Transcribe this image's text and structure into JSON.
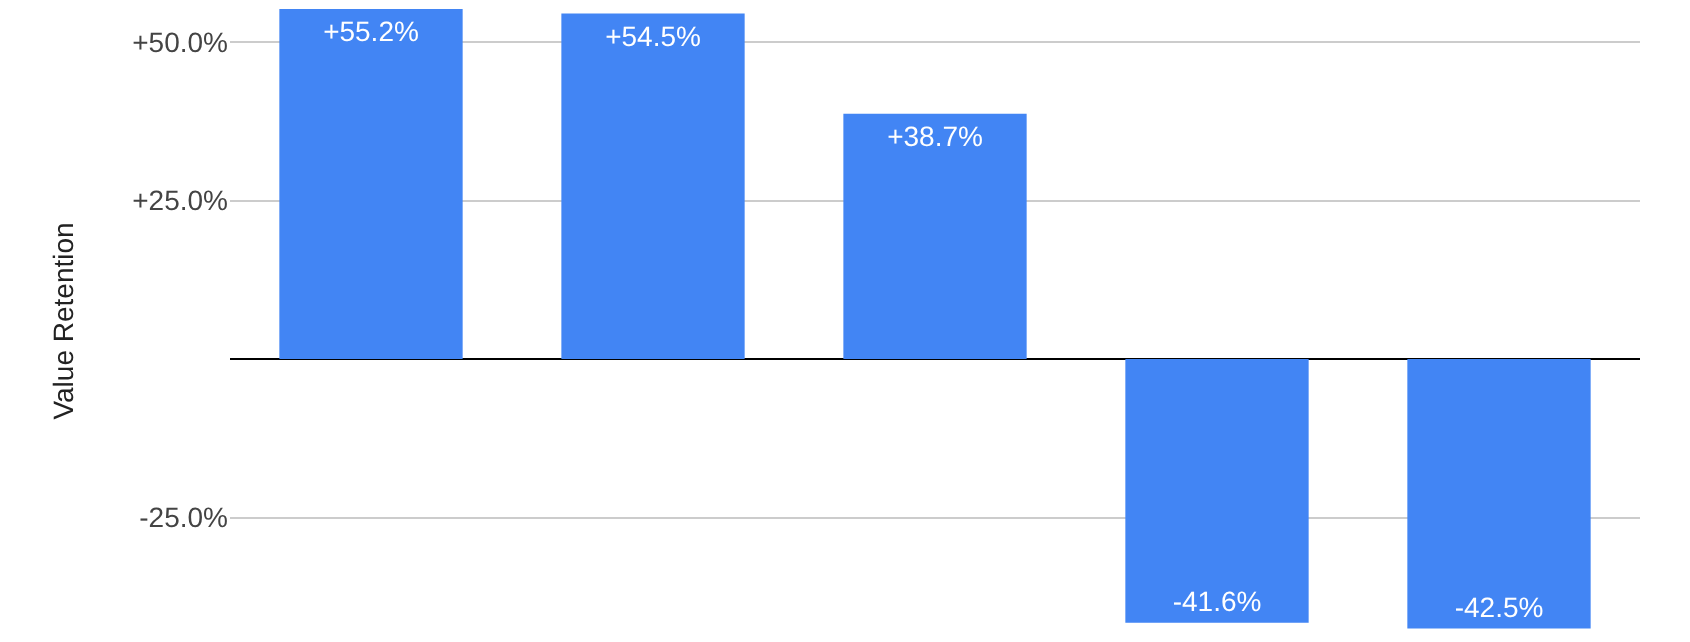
{
  "chart_data": {
    "type": "bar",
    "ylabel": "Value Retention",
    "categories": [
      null,
      null,
      null,
      null,
      null
    ],
    "values": [
      55.2,
      54.5,
      38.7,
      -41.6,
      -42.5
    ],
    "value_labels": [
      "+55.2%",
      "+54.5%",
      "+38.7%",
      "-41.6%",
      "-42.5%"
    ],
    "color": "#4285f4",
    "ylim": [
      -44,
      56
    ],
    "yticks": [
      {
        "value": 50,
        "label": "+50.0%"
      },
      {
        "value": 25,
        "label": "+25.0%"
      },
      {
        "value": 0,
        "label": null
      },
      {
        "value": -25,
        "label": "-25.0%"
      }
    ],
    "grid": true
  }
}
